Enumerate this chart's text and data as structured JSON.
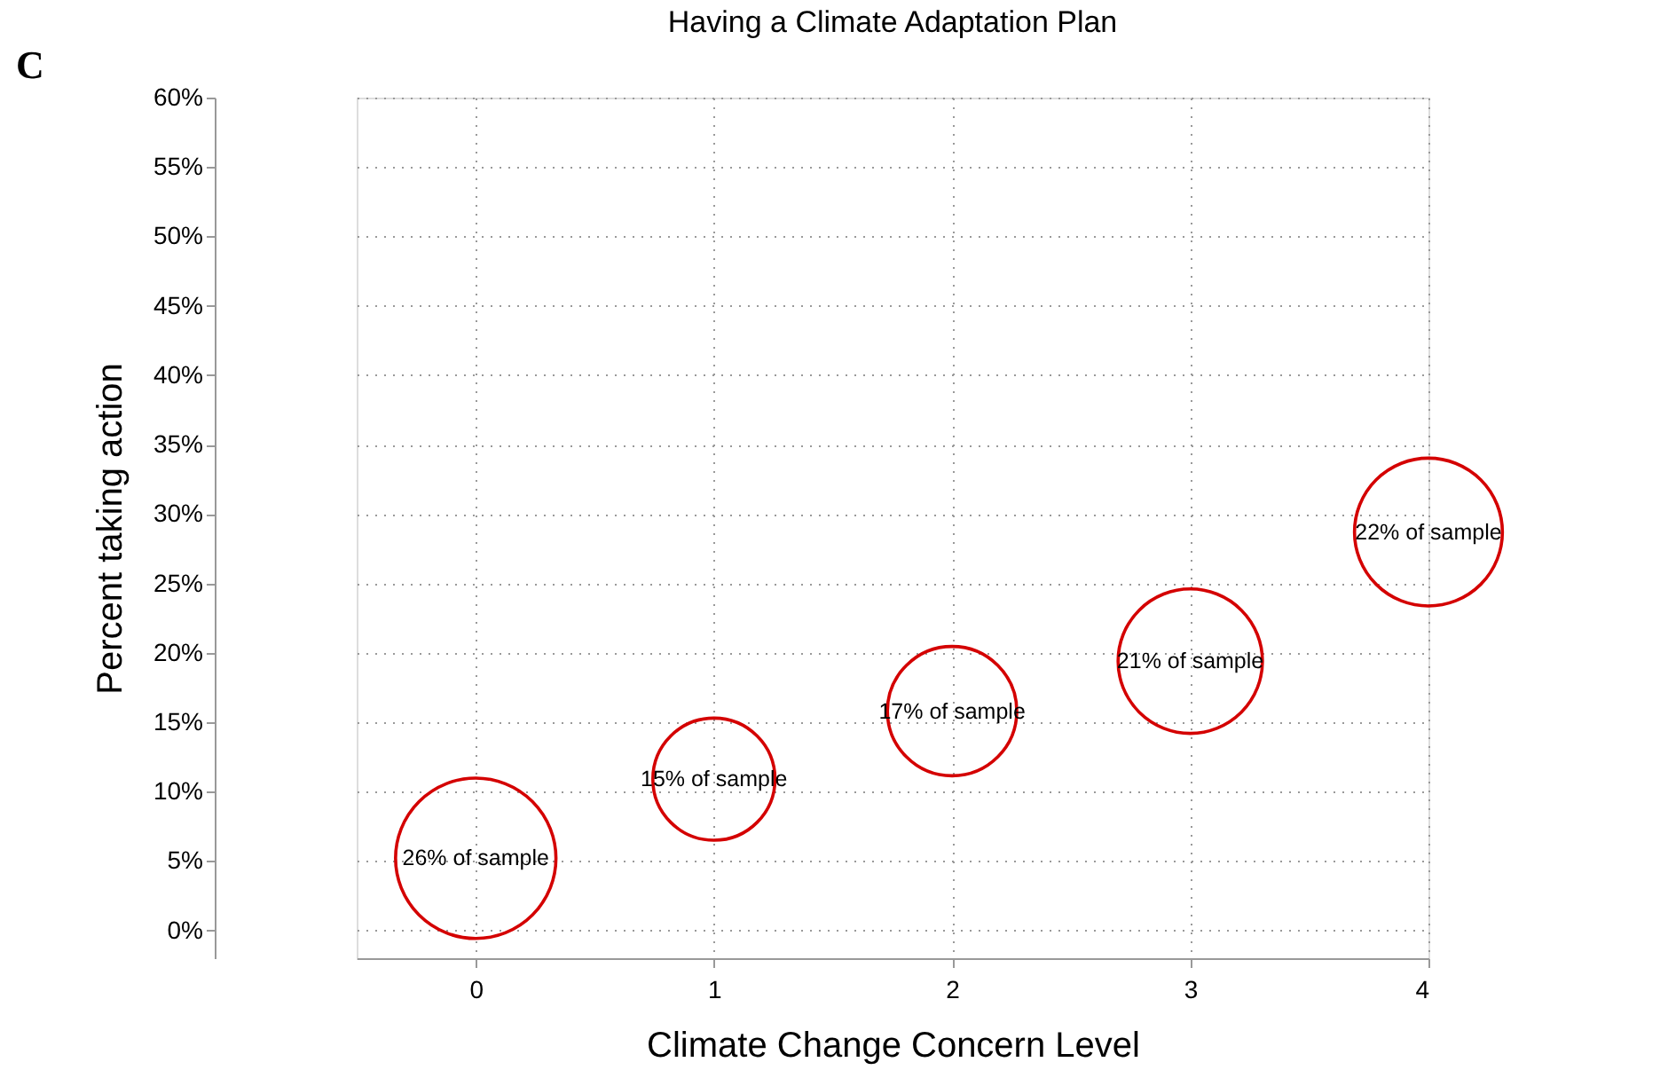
{
  "chart_data": {
    "type": "bubble",
    "title": "Having a Climate Adaptation Plan",
    "xlabel": "Climate Change Concern Level",
    "ylabel": "Percent taking action",
    "annotations": [
      "C",
      {
        "text": "26% of sample",
        "x": 0,
        "y": 5.2
      },
      {
        "text": "15% of sample",
        "x": 1,
        "y": 10.9
      },
      {
        "text": "17% of sample",
        "x": 2,
        "y": 15.8
      },
      {
        "text": "21% of sample",
        "x": 3,
        "y": 19.4
      },
      {
        "text": "22% of sample",
        "x": 4,
        "y": 28.7
      }
    ],
    "x": [
      0,
      1,
      2,
      3,
      4
    ],
    "series": [
      {
        "color": "#d40000",
        "values": [
          5.2,
          10.9,
          15.8,
          19.4,
          28.7
        ],
        "sizes": [
          1,
          0.58,
          0.65,
          0.81,
          0.85
        ]
      }
    ],
    "xlim": [
      -0.5,
      4
    ],
    "xticks": [
      0,
      1,
      2,
      3,
      4
    ],
    "ylim": [
      -2,
      60
    ],
    "yticks": [
      {
        "value": 0,
        "label": "0%"
      },
      {
        "value": 5,
        "label": "5%"
      },
      {
        "value": 10,
        "label": "10%"
      },
      {
        "value": 15,
        "label": "15%"
      },
      {
        "value": 20,
        "label": "20%"
      },
      {
        "value": 25,
        "label": "25%"
      },
      {
        "value": 30,
        "label": "30%"
      },
      {
        "value": 35,
        "label": "35%"
      },
      {
        "value": 40,
        "label": "40%"
      },
      {
        "value": 45,
        "label": "45%"
      },
      {
        "value": 50,
        "label": "50%"
      },
      {
        "value": 55,
        "label": "55%"
      },
      {
        "value": 60,
        "label": "60%"
      }
    ],
    "grid": true
  }
}
